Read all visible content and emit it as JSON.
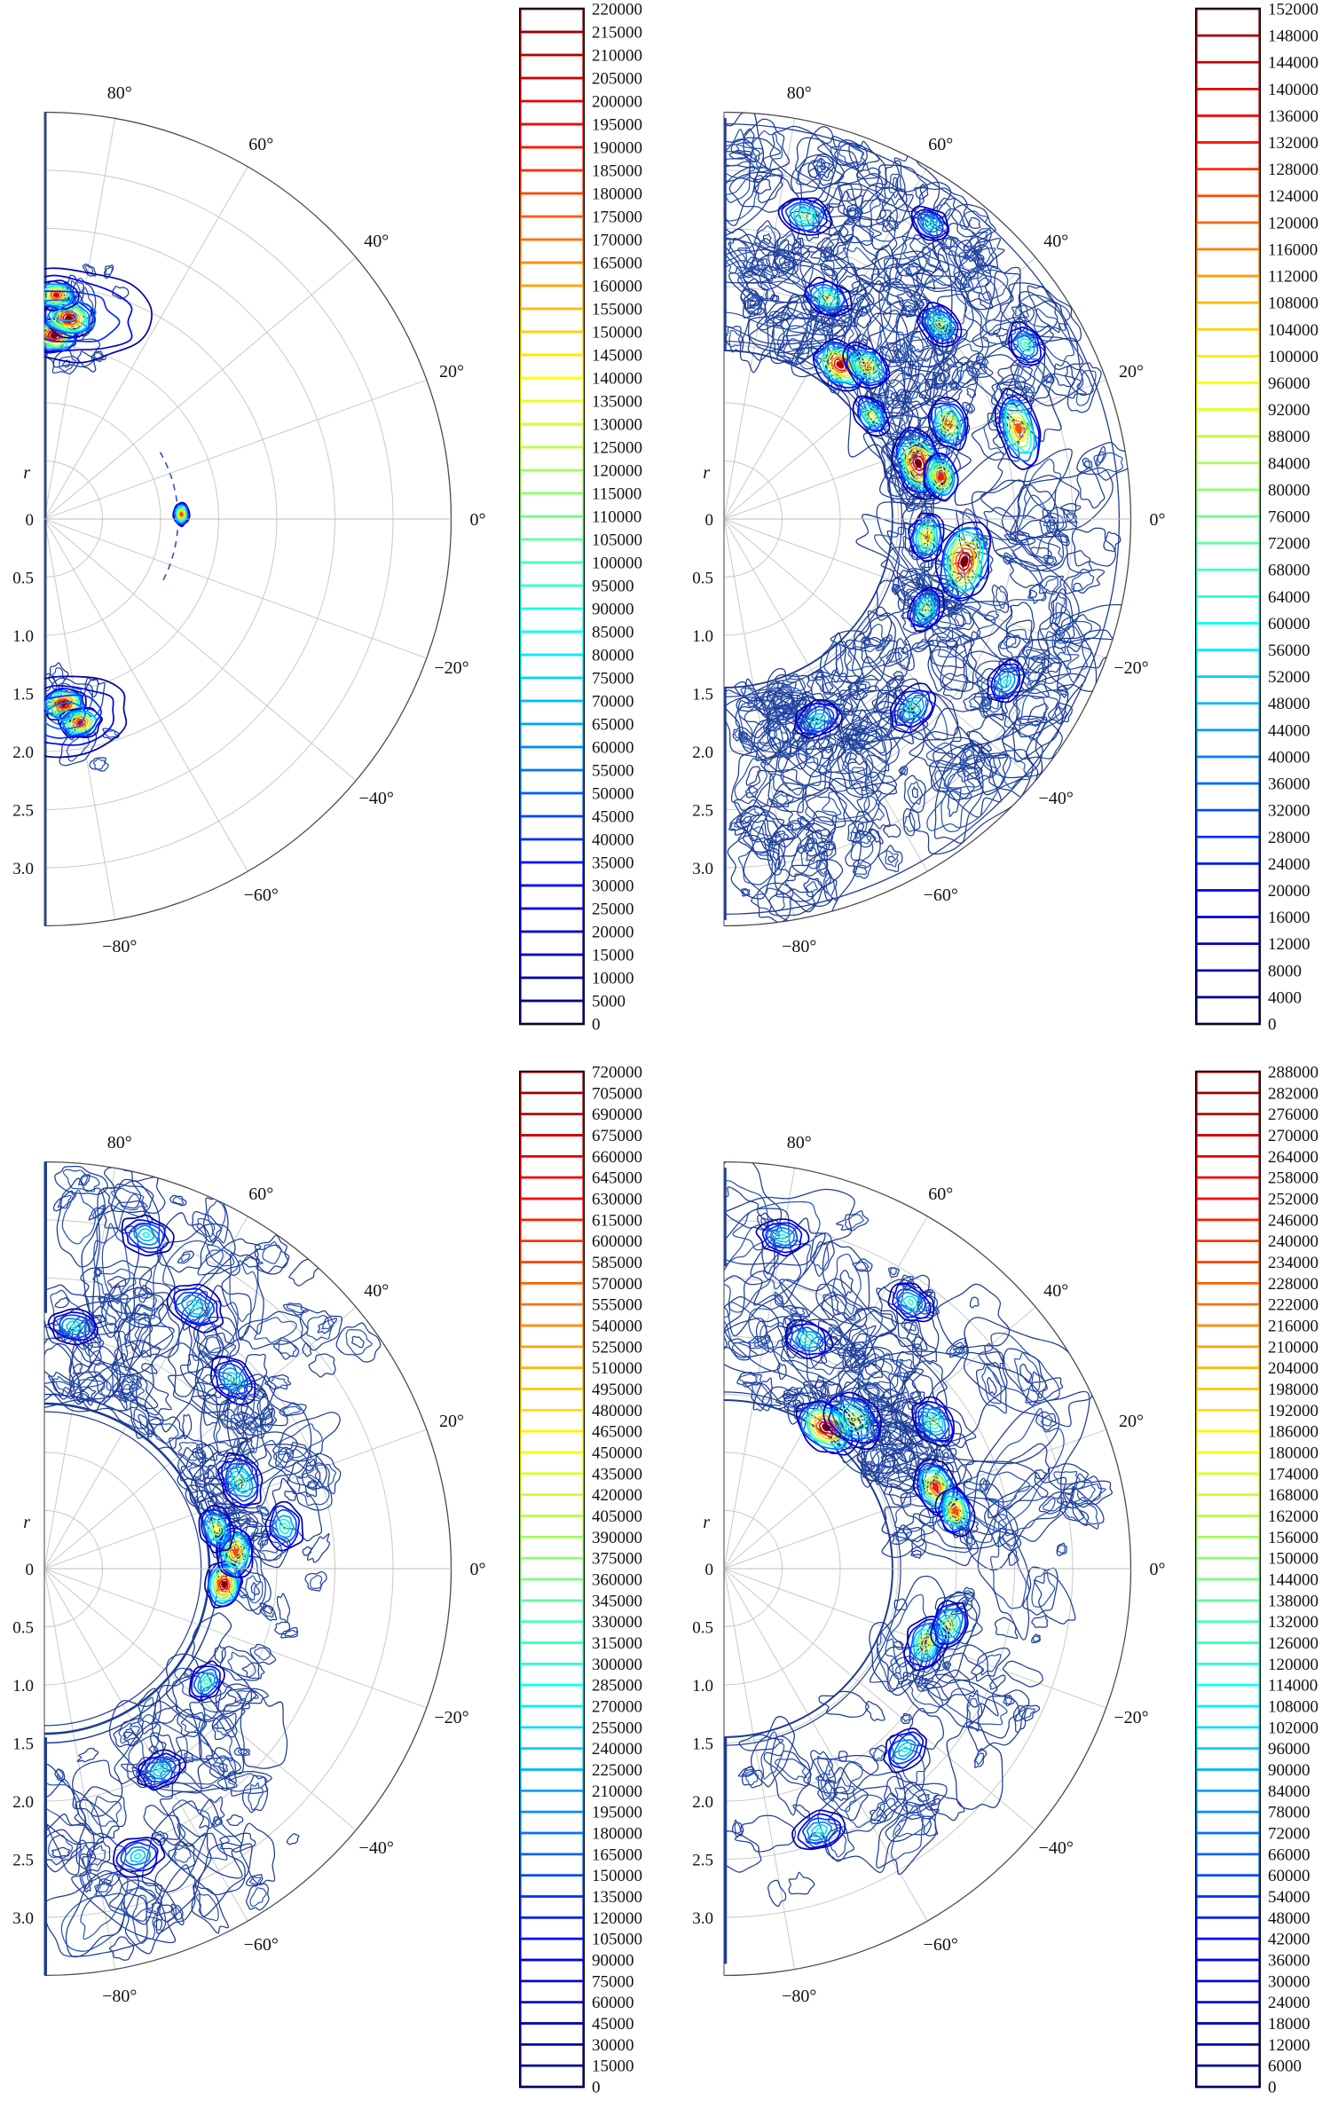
{
  "chart_data": {
    "type": "heatmap",
    "subtype": "polar_filled_contour",
    "colormap": "jet",
    "grid": true,
    "angle_ticks_deg": [
      80,
      60,
      40,
      20,
      0,
      -20,
      -40,
      -60,
      -80
    ],
    "angle_tick_labels": [
      "80°",
      "60°",
      "40°",
      "20°",
      "0°",
      "−20°",
      "−40°",
      "−60°",
      "−80°"
    ],
    "radial_axis_label": "r",
    "radial_tick_labels": [
      "0",
      "0.5",
      "1.0",
      "1.5",
      "2.0",
      "2.5",
      "3.0"
    ],
    "radial_max": 3.5,
    "colors": {
      "contour_dark": "#1e3c96",
      "contour_mid": "#2b55b4",
      "grid_line": "#c9c9c9",
      "frame_line": "#6e6e6e",
      "colorbar_frame": "#000000"
    },
    "panels": [
      {
        "position": "top-left",
        "seed": 11,
        "inner_radius": 1.1,
        "colorbar": {
          "min": 0,
          "max": 220000,
          "step": 5000,
          "ticks": [
            220000,
            215000,
            210000,
            205000,
            200000,
            195000,
            190000,
            185000,
            180000,
            175000,
            170000,
            165000,
            160000,
            155000,
            150000,
            145000,
            140000,
            135000,
            130000,
            125000,
            120000,
            115000,
            110000,
            105000,
            100000,
            95000,
            90000,
            85000,
            80000,
            75000,
            70000,
            65000,
            60000,
            55000,
            50000,
            45000,
            40000,
            35000,
            30000,
            25000,
            20000,
            15000,
            10000,
            5000,
            0
          ]
        },
        "hotspots": [
          {
            "a": 87,
            "r": 1.58,
            "i": 1.0,
            "w": 0.15
          },
          {
            "a": 83,
            "r": 1.74,
            "i": 1.0,
            "w": 0.16
          },
          {
            "a": 87,
            "r": 1.93,
            "i": 0.9,
            "w": 0.13
          },
          {
            "a": 84,
            "r": 1.76,
            "i": 0.3,
            "w": 0.4,
            "ex": 1.9
          },
          {
            "a": -84,
            "r": 1.6,
            "i": 1.0,
            "w": 0.14
          },
          {
            "a": -80,
            "r": 1.78,
            "i": 0.92,
            "w": 0.13
          },
          {
            "a": -84,
            "r": 1.7,
            "i": 0.3,
            "w": 0.33,
            "ex": 1.7
          },
          {
            "a": 2,
            "r": 1.18,
            "i": 0.8,
            "w": 0.07
          }
        ],
        "noise": [
          {
            "a0": 70,
            "a1": 89,
            "r0": 1.35,
            "r1": 2.3,
            "n": 14
          },
          {
            "a0": -89,
            "a1": -72,
            "r0": 1.35,
            "r1": 2.2,
            "n": 10
          }
        ],
        "edge_lines": [
          {
            "side": "top",
            "r0": 0,
            "r1": 3.5,
            "w": 2
          },
          {
            "side": "bottom",
            "r0": 0,
            "r1": 3.5,
            "w": 2
          }
        ],
        "dashed_arcs": [
          {
            "r": 1.15,
            "a0": -28,
            "a1": 30
          }
        ],
        "boundary_rings": []
      },
      {
        "position": "top-right",
        "seed": 22,
        "inner_radius": 1.45,
        "colorbar": {
          "min": 0,
          "max": 152000,
          "step": 4000,
          "ticks": [
            152000,
            148000,
            144000,
            140000,
            136000,
            132000,
            128000,
            124000,
            120000,
            116000,
            112000,
            108000,
            104000,
            100000,
            96000,
            92000,
            88000,
            84000,
            80000,
            76000,
            72000,
            68000,
            64000,
            60000,
            56000,
            52000,
            48000,
            44000,
            40000,
            36000,
            32000,
            28000,
            24000,
            20000,
            16000,
            12000,
            8000,
            4000,
            0
          ]
        },
        "hotspots": [
          {
            "a": 53,
            "r": 1.66,
            "i": 0.95,
            "w": 0.18
          },
          {
            "a": 47,
            "r": 1.8,
            "i": 0.7,
            "w": 0.16
          },
          {
            "a": 16,
            "r": 1.74,
            "i": 1.0,
            "w": 0.2,
            "ex": 1.5
          },
          {
            "a": 11,
            "r": 1.9,
            "i": 0.85,
            "w": 0.15
          },
          {
            "a": 23,
            "r": 2.1,
            "i": 0.75,
            "w": 0.16
          },
          {
            "a": 17,
            "r": 2.65,
            "i": 0.8,
            "w": 0.17,
            "ex": 2.0
          },
          {
            "a": -10,
            "r": 2.1,
            "i": 1.0,
            "w": 0.22,
            "ex": 1.6
          },
          {
            "a": -5,
            "r": 1.75,
            "i": 0.7,
            "w": 0.15
          },
          {
            "a": 35,
            "r": 1.55,
            "i": 0.6,
            "w": 0.13
          },
          {
            "a": 65,
            "r": 2.1,
            "i": 0.55,
            "w": 0.15
          },
          {
            "a": 75,
            "r": 2.7,
            "i": 0.5,
            "w": 0.16
          },
          {
            "a": 42,
            "r": 2.5,
            "i": 0.55,
            "w": 0.15
          },
          {
            "a": -24,
            "r": 1.9,
            "i": 0.55,
            "w": 0.14
          },
          {
            "a": -45,
            "r": 2.3,
            "i": 0.45,
            "w": 0.16
          },
          {
            "a": -65,
            "r": 1.9,
            "i": 0.4,
            "w": 0.15
          },
          {
            "a": 30,
            "r": 3.0,
            "i": 0.45,
            "w": 0.14
          },
          {
            "a": 55,
            "r": 3.1,
            "i": 0.4,
            "w": 0.13
          },
          {
            "a": -30,
            "r": 2.8,
            "i": 0.4,
            "w": 0.14
          }
        ],
        "noise": [
          {
            "a0": -88,
            "a1": 88,
            "r0": 1.55,
            "r1": 3.35,
            "n": 300
          },
          {
            "a0": 20,
            "a1": 88,
            "r0": 1.5,
            "r1": 3.3,
            "n": 90
          },
          {
            "a0": -88,
            "a1": -20,
            "r0": 1.5,
            "r1": 3.3,
            "n": 70
          }
        ],
        "edge_lines": [
          {
            "side": "top",
            "r0": 1.45,
            "r1": 3.45,
            "w": 2.5
          },
          {
            "side": "bottom",
            "r0": 1.45,
            "r1": 3.45,
            "w": 2.5
          }
        ],
        "dashed_arcs": [],
        "boundary_rings": [
          {
            "r": 1.45,
            "w": 1.8
          },
          {
            "r": 1.53,
            "w": 1.2
          },
          {
            "r": 3.4,
            "w": 1.3
          }
        ]
      },
      {
        "position": "bottom-left",
        "seed": 33,
        "inner_radius": 1.42,
        "colorbar": {
          "min": 0,
          "max": 720000,
          "step": 15000,
          "ticks": [
            720000,
            705000,
            690000,
            675000,
            660000,
            645000,
            630000,
            615000,
            600000,
            585000,
            570000,
            555000,
            540000,
            525000,
            510000,
            495000,
            480000,
            465000,
            450000,
            435000,
            420000,
            405000,
            390000,
            375000,
            360000,
            345000,
            330000,
            315000,
            300000,
            285000,
            270000,
            255000,
            240000,
            225000,
            210000,
            195000,
            180000,
            165000,
            150000,
            135000,
            120000,
            105000,
            90000,
            75000,
            60000,
            45000,
            30000,
            15000,
            0
          ]
        },
        "hotspots": [
          {
            "a": -5,
            "r": 1.55,
            "i": 1.0,
            "w": 0.15
          },
          {
            "a": 5,
            "r": 1.65,
            "i": 0.8,
            "w": 0.16
          },
          {
            "a": 13,
            "r": 1.52,
            "i": 0.62,
            "w": 0.14
          },
          {
            "a": 24,
            "r": 1.85,
            "i": 0.5,
            "w": 0.17
          },
          {
            "a": 10,
            "r": 2.1,
            "i": 0.45,
            "w": 0.15
          },
          {
            "a": 45,
            "r": 2.3,
            "i": 0.42,
            "w": 0.16
          },
          {
            "a": 60,
            "r": 2.6,
            "i": 0.4,
            "w": 0.18
          },
          {
            "a": 73,
            "r": 3.0,
            "i": 0.38,
            "w": 0.16
          },
          {
            "a": 83,
            "r": 2.1,
            "i": 0.4,
            "w": 0.15
          },
          {
            "a": -35,
            "r": 1.7,
            "i": 0.45,
            "w": 0.13
          },
          {
            "a": -60,
            "r": 2.0,
            "i": 0.4,
            "w": 0.15
          },
          {
            "a": -72,
            "r": 2.6,
            "i": 0.38,
            "w": 0.16
          }
        ],
        "noise": [
          {
            "a0": 35,
            "a1": 88,
            "r0": 1.5,
            "r1": 3.4,
            "n": 90
          },
          {
            "a0": 0,
            "a1": 40,
            "r0": 1.5,
            "r1": 2.6,
            "n": 50
          },
          {
            "a0": -88,
            "a1": -45,
            "r0": 1.5,
            "r1": 3.4,
            "n": 60
          },
          {
            "a0": -45,
            "a1": 0,
            "r0": 1.5,
            "r1": 2.4,
            "n": 25
          }
        ],
        "edge_lines": [
          {
            "side": "top",
            "r0": 2.2,
            "r1": 3.5,
            "w": 3
          },
          {
            "side": "bottom",
            "r0": 1.45,
            "r1": 3.5,
            "w": 3
          }
        ],
        "dashed_arcs": [],
        "boundary_rings": [
          {
            "r": 1.42,
            "w": 2.6
          },
          {
            "r": 1.5,
            "w": 1.4
          },
          {
            "r": 1.35,
            "w": 1.2
          }
        ]
      },
      {
        "position": "bottom-right",
        "seed": 44,
        "inner_radius": 1.45,
        "colorbar": {
          "min": 0,
          "max": 288000,
          "step": 6000,
          "ticks": [
            288000,
            282000,
            276000,
            270000,
            264000,
            258000,
            252000,
            246000,
            240000,
            234000,
            228000,
            222000,
            216000,
            210000,
            204000,
            198000,
            192000,
            186000,
            180000,
            174000,
            168000,
            162000,
            156000,
            150000,
            144000,
            138000,
            132000,
            126000,
            120000,
            114000,
            108000,
            102000,
            96000,
            90000,
            84000,
            78000,
            72000,
            66000,
            60000,
            54000,
            48000,
            42000,
            36000,
            30000,
            24000,
            18000,
            12000,
            6000,
            0
          ]
        },
        "hotspots": [
          {
            "a": 54,
            "r": 1.5,
            "i": 1.0,
            "w": 0.2
          },
          {
            "a": 49,
            "r": 1.7,
            "i": 0.6,
            "w": 0.2
          },
          {
            "a": 21,
            "r": 1.95,
            "i": 0.85,
            "w": 0.17
          },
          {
            "a": 14,
            "r": 2.05,
            "i": 0.8,
            "w": 0.15
          },
          {
            "a": -20,
            "r": 1.85,
            "i": 0.65,
            "w": 0.17
          },
          {
            "a": -14,
            "r": 2.0,
            "i": 0.6,
            "w": 0.15
          },
          {
            "a": 35,
            "r": 2.2,
            "i": 0.5,
            "w": 0.16
          },
          {
            "a": 70,
            "r": 2.1,
            "i": 0.45,
            "w": 0.15
          },
          {
            "a": 80,
            "r": 2.9,
            "i": 0.4,
            "w": 0.15
          },
          {
            "a": 55,
            "r": 2.8,
            "i": 0.42,
            "w": 0.15
          },
          {
            "a": -45,
            "r": 2.2,
            "i": 0.4,
            "w": 0.15
          },
          {
            "a": -70,
            "r": 2.4,
            "i": 0.4,
            "w": 0.16
          }
        ],
        "noise": [
          {
            "a0": 0,
            "a1": 88,
            "r0": 1.5,
            "r1": 3.2,
            "n": 120
          },
          {
            "a0": -88,
            "a1": 0,
            "r0": 1.5,
            "r1": 2.9,
            "n": 70
          },
          {
            "a0": 30,
            "a1": 70,
            "r0": 1.48,
            "r1": 2.3,
            "n": 40
          }
        ],
        "edge_lines": [
          {
            "side": "top",
            "r0": 2.6,
            "r1": 3.45,
            "w": 2.5
          },
          {
            "side": "bottom",
            "r0": 1.45,
            "r1": 3.4,
            "w": 3.5
          }
        ],
        "dashed_arcs": [],
        "boundary_rings": [
          {
            "r": 1.45,
            "w": 2.0
          },
          {
            "r": 1.52,
            "w": 1.2
          }
        ]
      }
    ]
  }
}
